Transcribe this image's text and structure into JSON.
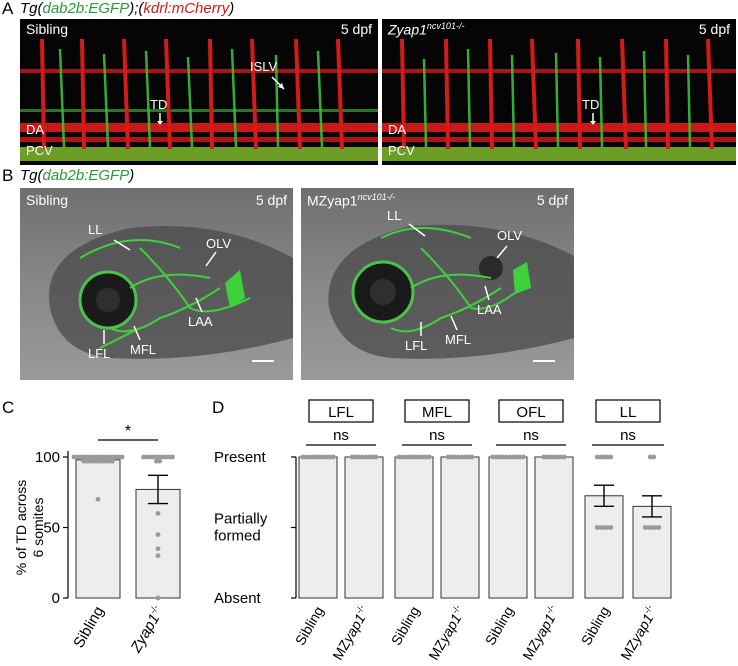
{
  "panelA": {
    "letter": "A",
    "header": {
      "tg": "Tg(",
      "egfp": "dab2b:EGFP",
      "mid": ");(",
      "cherry": "kdrl:mCherry",
      "end": ")"
    },
    "left": {
      "title": "Sibling",
      "stage": "5 dpf",
      "labels": {
        "islv": "ISLV",
        "td": "TD",
        "da": "DA",
        "pcv": "PCV"
      }
    },
    "right": {
      "title_main": "Zyap1",
      "title_sup": "ncv101-/-",
      "stage": "5 dpf",
      "labels": {
        "td": "TD",
        "da": "DA",
        "pcv": "PCV"
      }
    }
  },
  "panelB": {
    "letter": "B",
    "header": {
      "tg": "Tg(",
      "egfp": "dab2b:EGFP",
      "end": ")"
    },
    "left": {
      "title": "Sibling",
      "stage": "5 dpf",
      "labels": {
        "ll": "LL",
        "olv": "OLV",
        "laa": "LAA",
        "lfl": "LFL",
        "mfl": "MFL"
      }
    },
    "right": {
      "title_main": "MZyap1",
      "title_sup": "ncv101-/-",
      "stage": "5 dpf",
      "labels": {
        "ll": "LL",
        "olv": "OLV",
        "laa": "LAA",
        "lfl": "LFL",
        "mfl": "MFL"
      }
    }
  },
  "colors": {
    "egfp": "#2a9a3a",
    "mcherry": "#d21a1a",
    "bar_fill": "#ededed",
    "dot": "#9a9a9a"
  },
  "chart_data": [
    {
      "panel": "C",
      "type": "bar",
      "ylabel_line1": "% of TD across",
      "ylabel_line2": "6 somites",
      "yticks": [
        0,
        50,
        100
      ],
      "ylim": [
        0,
        105
      ],
      "categories": [
        "Sibling",
        "Zyap1-/-"
      ],
      "values": [
        98,
        77
      ],
      "errors": [
        1.5,
        10
      ],
      "significance": "*",
      "points": [
        [
          100,
          100,
          100,
          100,
          100,
          100,
          100,
          100,
          100,
          100,
          100,
          100,
          100,
          100,
          100,
          100,
          97,
          97,
          97,
          97,
          97,
          97,
          97,
          97,
          97,
          97,
          70
        ],
        [
          100,
          100,
          100,
          100,
          100,
          100,
          100,
          100,
          100,
          100,
          97,
          97,
          60,
          45,
          35,
          30,
          0
        ]
      ]
    },
    {
      "panel": "D",
      "type": "bar",
      "ylevels": [
        "Absent",
        "Partially formed",
        "Present"
      ],
      "groups": [
        "LFL",
        "MFL",
        "OFL",
        "LL"
      ],
      "categories": [
        "Sibling",
        "MZyap1-/-",
        "Sibling",
        "MZyap1-/-",
        "Sibling",
        "MZyap1-/-",
        "Sibling",
        "MZyap1-/-"
      ],
      "values": [
        2,
        2,
        2,
        2,
        2,
        2,
        1.45,
        1.3
      ],
      "errors": [
        0,
        0,
        0,
        0,
        0,
        0,
        0.15,
        0.15
      ],
      "significance": [
        "ns",
        "ns",
        "ns",
        "ns"
      ],
      "points": [
        [
          2,
          2,
          2,
          2,
          2,
          2,
          2,
          2,
          2,
          2
        ],
        [
          2,
          2,
          2,
          2,
          2,
          2,
          2,
          2
        ],
        [
          2,
          2,
          2,
          2,
          2,
          2,
          2,
          2,
          2,
          2
        ],
        [
          2,
          2,
          2,
          2,
          2,
          2,
          2,
          2
        ],
        [
          2,
          2,
          2,
          2,
          2,
          2,
          2,
          2,
          2,
          2
        ],
        [
          2,
          2,
          2,
          2,
          2,
          2,
          2
        ],
        [
          2,
          2,
          2,
          2,
          2,
          1,
          1,
          1,
          1,
          1
        ],
        [
          2,
          2,
          1,
          1,
          1,
          1,
          1
        ]
      ]
    }
  ]
}
